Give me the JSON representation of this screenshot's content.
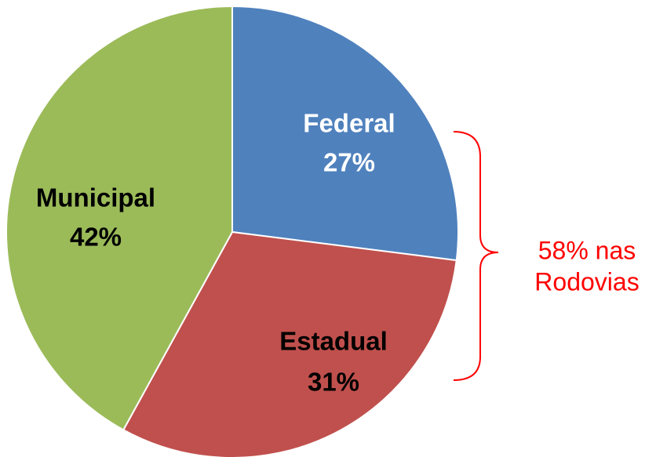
{
  "chart_data": {
    "type": "pie",
    "categories": [
      "Federal",
      "Estadual",
      "Municipal"
    ],
    "values": [
      27,
      31,
      42
    ],
    "value_labels": [
      "27%",
      "31%",
      "42%"
    ],
    "colors": [
      "#4f81bd",
      "#c0504d",
      "#9bbb59"
    ],
    "annotation": [
      "58% nas",
      "Rodovias"
    ],
    "annotation_color": "#ff0000"
  }
}
